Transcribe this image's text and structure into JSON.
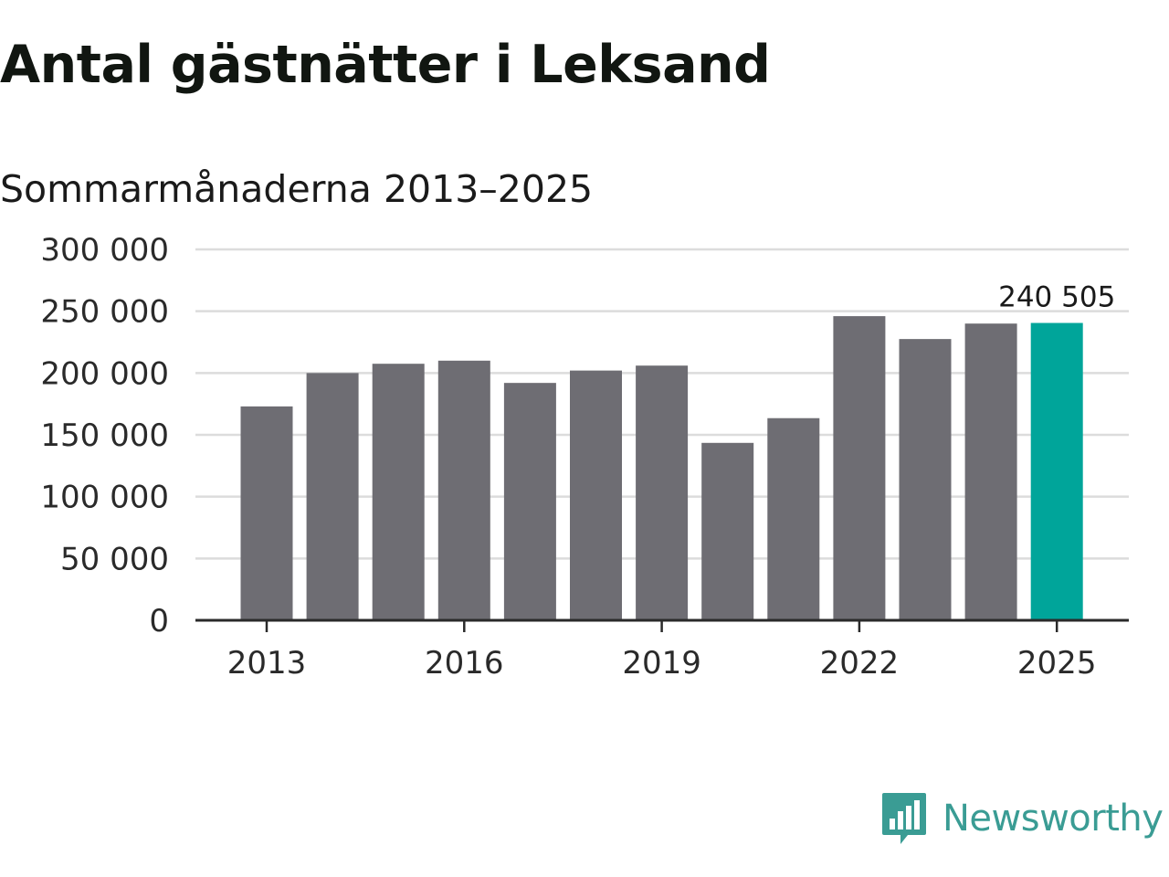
{
  "chart_data": {
    "type": "bar",
    "title": "Antal gästnätter i Leksand",
    "subtitle": "Sommarmånaderna 2013–2025",
    "categories": [
      "2013",
      "2014",
      "2015",
      "2016",
      "2017",
      "2018",
      "2019",
      "2020",
      "2021",
      "2022",
      "2023",
      "2024",
      "2025"
    ],
    "values": [
      173000,
      200000,
      207500,
      210000,
      192000,
      202000,
      206000,
      143500,
      163500,
      246000,
      227500,
      240000,
      240505
    ],
    "x_tick_labels": [
      "2013",
      "2016",
      "2019",
      "2022",
      "2025"
    ],
    "y_tick_labels": [
      "0",
      "50 000",
      "100 000",
      "150 000",
      "200 000",
      "250 000",
      "300 000"
    ],
    "ylim": [
      0,
      300000
    ],
    "grid": true,
    "highlight_index": 12,
    "highlight_label": "240 505",
    "colors": {
      "bar": "#6e6d73",
      "highlight": "#00a59a",
      "grid": "#dcdcdc",
      "axis": "#2a2a2a",
      "text": "#2a2a2a"
    }
  },
  "logo": {
    "text": "Newsworthy",
    "icon": "newsworthy-logo-icon",
    "color": "#3a9c94"
  }
}
